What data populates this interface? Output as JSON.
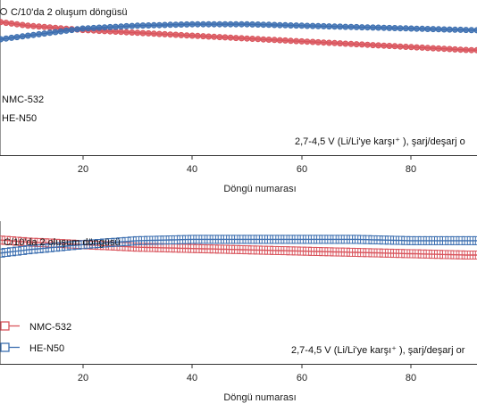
{
  "colors": {
    "nmc": "#d9545c",
    "he": "#3c6fb0",
    "axis": "#333333"
  },
  "chart_data": [
    {
      "type": "line",
      "panel": "top",
      "title": "",
      "xlabel": "Döngü numarası",
      "ylabel": "",
      "xlim": [
        0,
        100
      ],
      "ylim": [
        0,
        1
      ],
      "xticks": [
        20,
        40,
        60,
        80
      ],
      "grid": false,
      "legend_placement": "bottom-left",
      "marker": "circle",
      "note_top": "C/10'da 2 oluşum döngüsü",
      "note_bottom": "2,7-4,5 V (Li/Li'ye karşı⁺ ), şarj/deşarj o",
      "series": [
        {
          "name": "NMC-532",
          "color_key": "nmc",
          "x": [
            0,
            10,
            20,
            30,
            40,
            50,
            60,
            70,
            80,
            90,
            100
          ],
          "y": [
            0.87,
            0.82,
            0.79,
            0.77,
            0.75,
            0.73,
            0.71,
            0.69,
            0.67,
            0.65,
            0.64
          ]
        },
        {
          "name": "HE-N50",
          "color_key": "he",
          "x": [
            0,
            10,
            20,
            30,
            40,
            50,
            60,
            70,
            80,
            90,
            100
          ],
          "y": [
            0.7,
            0.75,
            0.8,
            0.82,
            0.83,
            0.83,
            0.82,
            0.81,
            0.8,
            0.79,
            0.78
          ]
        }
      ]
    },
    {
      "type": "line",
      "panel": "bottom",
      "title": "",
      "xlabel": "Döngü numarası",
      "ylabel": "",
      "xlim": [
        0,
        100
      ],
      "ylim": [
        0,
        1
      ],
      "xticks": [
        20,
        40,
        60,
        80
      ],
      "grid": false,
      "legend_placement": "bottom-left",
      "marker": "square",
      "note_top": "C/10'da 2 oluşum döngüsü",
      "note_bottom": "2,7-4,5 V (Li/Li'ye karşı⁺ ), şarj/deşarj or",
      "series": [
        {
          "name": "NMC-532",
          "color_key": "nmc",
          "x": [
            0,
            10,
            20,
            30,
            40,
            50,
            60,
            70,
            80,
            90,
            100
          ],
          "y": [
            0.87,
            0.84,
            0.82,
            0.8,
            0.79,
            0.78,
            0.77,
            0.76,
            0.75,
            0.74,
            0.74
          ]
        },
        {
          "name": "HE-N50",
          "color_key": "he",
          "x": [
            0,
            10,
            20,
            30,
            40,
            50,
            60,
            70,
            80,
            90,
            100
          ],
          "y": [
            0.73,
            0.78,
            0.82,
            0.85,
            0.86,
            0.86,
            0.86,
            0.86,
            0.85,
            0.85,
            0.85
          ]
        }
      ]
    }
  ]
}
